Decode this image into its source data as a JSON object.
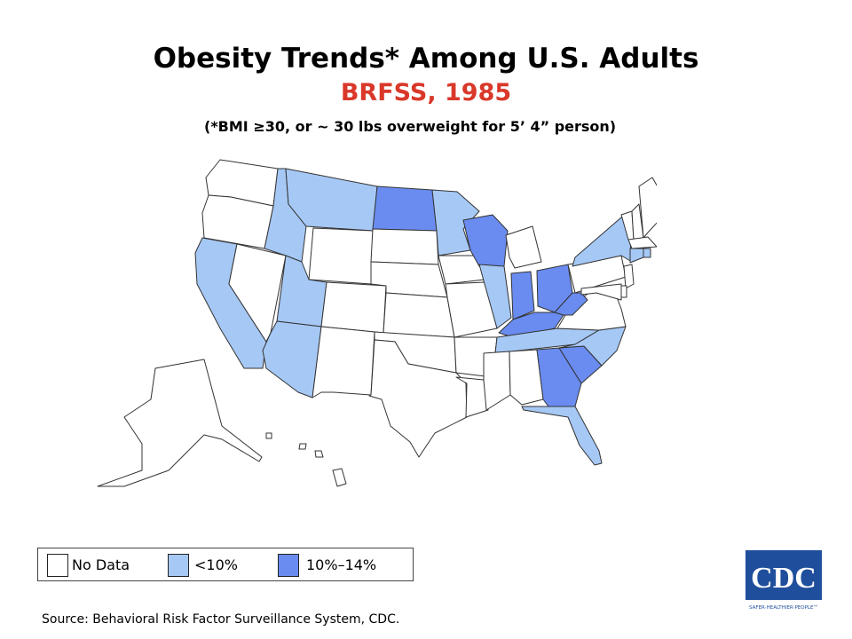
{
  "header": {
    "title": "Obesity Trends* Among U.S. Adults",
    "subtitle": "BRFSS, 1985",
    "subtitle_color": "#d9382a",
    "note": "(*BMI ≥30, or ~ 30 lbs overweight for 5’ 4” person)"
  },
  "colors": {
    "no_data": "#ffffff",
    "lt10": "#a6c8f5",
    "p10_14": "#6a8cf0",
    "border": "#333333"
  },
  "legend": {
    "items": [
      {
        "label": "No Data",
        "category": "no_data"
      },
      {
        "label": "<10%",
        "category": "lt10"
      },
      {
        "label": "10%–14%",
        "category": "p10_14"
      }
    ]
  },
  "states": {
    "WA": "no_data",
    "OR": "no_data",
    "CA": "lt10",
    "NV": "no_data",
    "ID": "lt10",
    "MT": "lt10",
    "WY": "no_data",
    "UT": "lt10",
    "AZ": "lt10",
    "CO": "no_data",
    "NM": "no_data",
    "ND": "p10_14",
    "SD": "no_data",
    "NE": "no_data",
    "KS": "no_data",
    "OK": "no_data",
    "TX": "no_data",
    "MN": "lt10",
    "IA": "no_data",
    "MO": "no_data",
    "AR": "no_data",
    "LA": "no_data",
    "WI": "p10_14",
    "IL": "lt10",
    "MI": "no_data",
    "IN": "p10_14",
    "OH": "p10_14",
    "KY": "p10_14",
    "TN": "lt10",
    "MS": "no_data",
    "AL": "no_data",
    "GA": "p10_14",
    "FL": "lt10",
    "SC": "p10_14",
    "NC": "lt10",
    "VA": "no_data",
    "WV": "p10_14",
    "PA": "no_data",
    "NY": "lt10",
    "VT": "no_data",
    "NH": "no_data",
    "ME": "no_data",
    "MA": "no_data",
    "RI": "lt10",
    "CT": "lt10",
    "NJ": "no_data",
    "DE": "no_data",
    "MD": "no_data",
    "AK": "no_data",
    "HI": "no_data"
  },
  "source": "Source: Behavioral Risk Factor Surveillance System, CDC.",
  "logo": {
    "text": "CDC",
    "tagline": "SAFER·HEALTHIER·PEOPLE™",
    "color": "#1f4f9c"
  }
}
